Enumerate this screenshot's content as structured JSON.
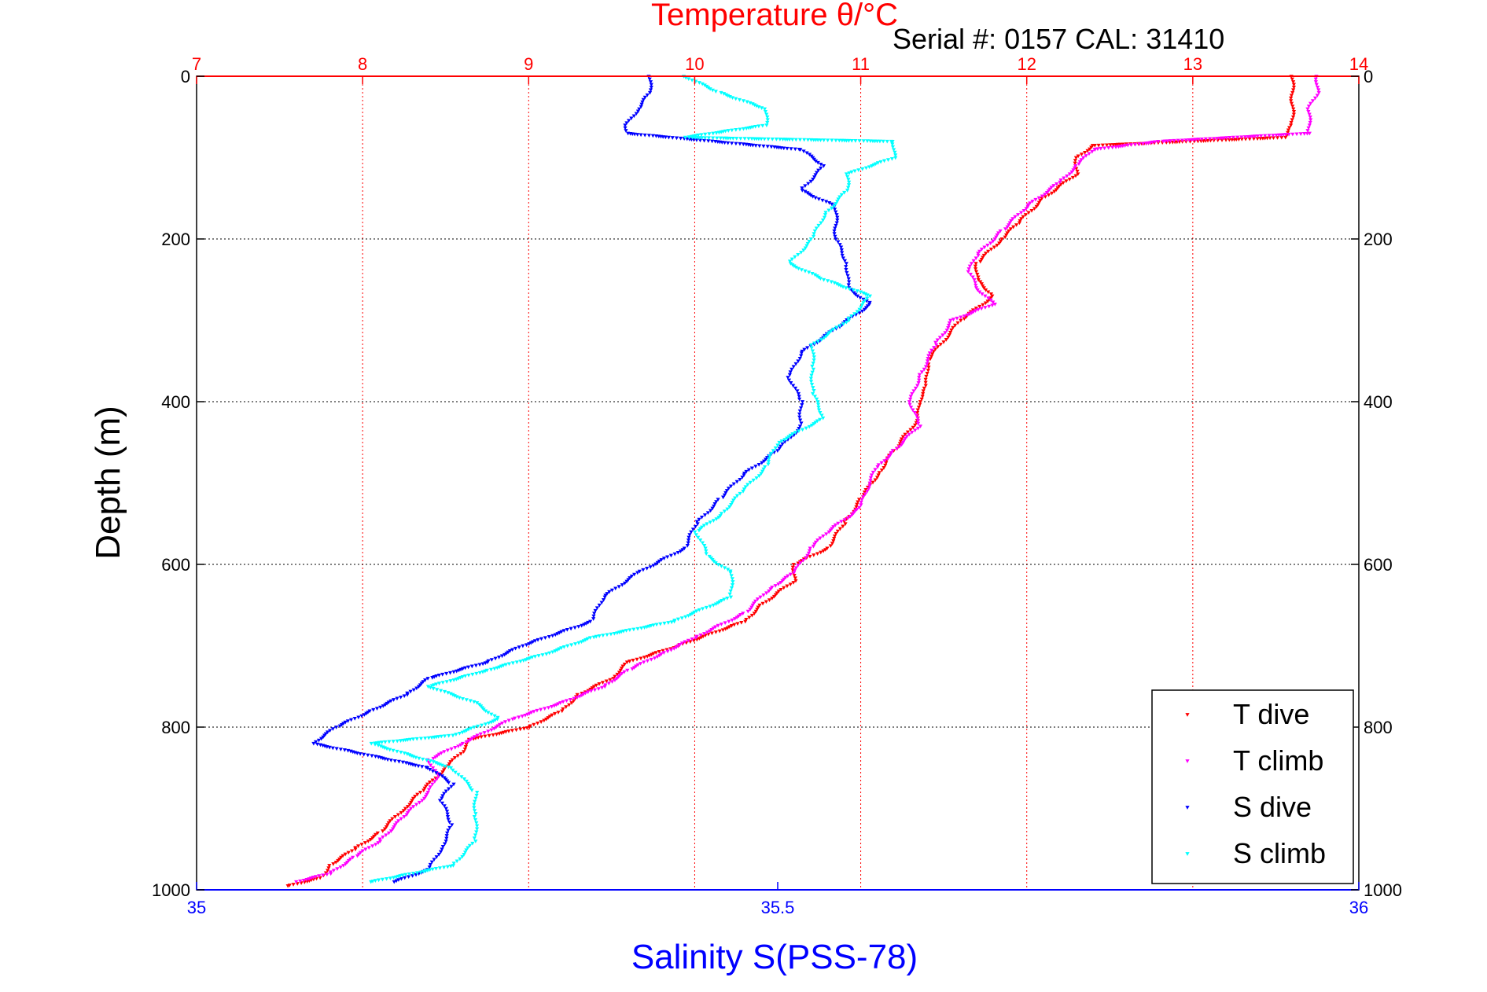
{
  "chart_data": {
    "type": "scatter",
    "title": "Temperature θ/°C",
    "subtitle": "Serial #: 0157  CAL: 31410",
    "xlabel": "Salinity S(PSS-78)",
    "ylabel": "Depth (m)",
    "x_top": {
      "label": "Temperature θ/°C",
      "range": [
        7,
        14
      ],
      "ticks": [
        "7",
        "8",
        "9",
        "10",
        "11",
        "12",
        "13",
        "14"
      ],
      "color": "#ff0000"
    },
    "x_bottom": {
      "label": "Salinity S(PSS-78)",
      "range": [
        35,
        36
      ],
      "ticks": [
        "35",
        "35.5",
        "36"
      ],
      "color": "#0000ff"
    },
    "y": {
      "label": "Depth (m)",
      "range": [
        0,
        1000
      ],
      "reversed": true,
      "ticks": [
        "0",
        "200",
        "400",
        "600",
        "800",
        "1000"
      ]
    },
    "grid": true,
    "legend_position": "bottom-right",
    "series": [
      {
        "name": "T dive",
        "axis": "temperature",
        "color": "#ff0000",
        "points": [
          [
            13.6,
            0
          ],
          [
            13.6,
            20
          ],
          [
            13.6,
            40
          ],
          [
            13.6,
            60
          ],
          [
            13.55,
            75
          ],
          [
            12.4,
            85
          ],
          [
            12.3,
            100
          ],
          [
            12.3,
            120
          ],
          [
            12.1,
            150
          ],
          [
            11.95,
            180
          ],
          [
            11.85,
            200
          ],
          [
            11.7,
            230
          ],
          [
            11.7,
            250
          ],
          [
            11.8,
            270
          ],
          [
            11.6,
            300
          ],
          [
            11.4,
            350
          ],
          [
            11.4,
            380
          ],
          [
            11.35,
            400
          ],
          [
            11.35,
            420
          ],
          [
            11.2,
            460
          ],
          [
            11.1,
            490
          ],
          [
            11.0,
            520
          ],
          [
            10.9,
            550
          ],
          [
            10.8,
            580
          ],
          [
            10.6,
            600
          ],
          [
            10.6,
            620
          ],
          [
            10.4,
            650
          ],
          [
            10.3,
            670
          ],
          [
            9.9,
            700
          ],
          [
            9.6,
            720
          ],
          [
            9.5,
            740
          ],
          [
            9.3,
            760
          ],
          [
            9.2,
            780
          ],
          [
            9.0,
            800
          ],
          [
            8.65,
            815
          ],
          [
            8.6,
            830
          ],
          [
            8.5,
            850
          ],
          [
            8.35,
            880
          ],
          [
            8.25,
            900
          ],
          [
            8.1,
            930
          ],
          [
            7.95,
            950
          ],
          [
            7.8,
            970
          ],
          [
            7.75,
            985
          ],
          [
            7.55,
            995
          ]
        ]
      },
      {
        "name": "T climb",
        "axis": "temperature",
        "color": "#ff00ff",
        "points": [
          [
            13.75,
            0
          ],
          [
            13.75,
            20
          ],
          [
            13.7,
            40
          ],
          [
            13.7,
            60
          ],
          [
            13.7,
            70
          ],
          [
            12.8,
            80
          ],
          [
            12.4,
            90
          ],
          [
            12.3,
            110
          ],
          [
            12.2,
            130
          ],
          [
            12.0,
            160
          ],
          [
            11.85,
            190
          ],
          [
            11.7,
            220
          ],
          [
            11.65,
            240
          ],
          [
            11.7,
            260
          ],
          [
            11.8,
            280
          ],
          [
            11.55,
            300
          ],
          [
            11.45,
            330
          ],
          [
            11.35,
            370
          ],
          [
            11.3,
            400
          ],
          [
            11.35,
            430
          ],
          [
            11.2,
            460
          ],
          [
            11.1,
            480
          ],
          [
            11.05,
            500
          ],
          [
            11.0,
            530
          ],
          [
            10.8,
            560
          ],
          [
            10.7,
            580
          ],
          [
            10.6,
            610
          ],
          [
            10.45,
            630
          ],
          [
            10.3,
            660
          ],
          [
            10.0,
            690
          ],
          [
            9.8,
            710
          ],
          [
            9.6,
            730
          ],
          [
            9.45,
            750
          ],
          [
            9.2,
            770
          ],
          [
            8.9,
            790
          ],
          [
            8.6,
            820
          ],
          [
            8.4,
            840
          ],
          [
            8.45,
            860
          ],
          [
            8.4,
            880
          ],
          [
            8.25,
            910
          ],
          [
            8.1,
            940
          ],
          [
            7.95,
            960
          ],
          [
            7.8,
            980
          ],
          [
            7.6,
            990
          ]
        ]
      },
      {
        "name": "S dive",
        "axis": "salinity",
        "color": "#0000ff",
        "points": [
          [
            35.39,
            0
          ],
          [
            35.39,
            20
          ],
          [
            35.38,
            40
          ],
          [
            35.37,
            60
          ],
          [
            35.37,
            70
          ],
          [
            35.52,
            90
          ],
          [
            35.54,
            110
          ],
          [
            35.52,
            140
          ],
          [
            35.55,
            160
          ],
          [
            35.55,
            180
          ],
          [
            35.55,
            200
          ],
          [
            35.56,
            230
          ],
          [
            35.56,
            260
          ],
          [
            35.58,
            280
          ],
          [
            35.55,
            310
          ],
          [
            35.52,
            340
          ],
          [
            35.51,
            370
          ],
          [
            35.52,
            400
          ],
          [
            35.52,
            430
          ],
          [
            35.5,
            460
          ],
          [
            35.47,
            490
          ],
          [
            35.45,
            520
          ],
          [
            35.43,
            550
          ],
          [
            35.42,
            580
          ],
          [
            35.38,
            610
          ],
          [
            35.35,
            640
          ],
          [
            35.34,
            670
          ],
          [
            35.28,
            700
          ],
          [
            35.25,
            720
          ],
          [
            35.2,
            740
          ],
          [
            35.18,
            760
          ],
          [
            35.15,
            780
          ],
          [
            35.12,
            800
          ],
          [
            35.1,
            820
          ],
          [
            35.2,
            850
          ],
          [
            35.22,
            870
          ],
          [
            35.21,
            890
          ],
          [
            35.22,
            920
          ],
          [
            35.21,
            950
          ],
          [
            35.2,
            975
          ],
          [
            35.17,
            990
          ]
        ]
      },
      {
        "name": "S climb",
        "axis": "salinity",
        "color": "#00ffff",
        "points": [
          [
            35.42,
            0
          ],
          [
            35.45,
            20
          ],
          [
            35.49,
            40
          ],
          [
            35.49,
            60
          ],
          [
            35.42,
            75
          ],
          [
            35.6,
            80
          ],
          [
            35.6,
            100
          ],
          [
            35.56,
            120
          ],
          [
            35.56,
            140
          ],
          [
            35.54,
            170
          ],
          [
            35.53,
            200
          ],
          [
            35.51,
            230
          ],
          [
            35.54,
            250
          ],
          [
            35.58,
            270
          ],
          [
            35.56,
            300
          ],
          [
            35.53,
            330
          ],
          [
            35.53,
            360
          ],
          [
            35.53,
            390
          ],
          [
            35.54,
            420
          ],
          [
            35.5,
            450
          ],
          [
            35.49,
            480
          ],
          [
            35.47,
            510
          ],
          [
            35.45,
            540
          ],
          [
            35.43,
            560
          ],
          [
            35.44,
            590
          ],
          [
            35.46,
            610
          ],
          [
            35.46,
            640
          ],
          [
            35.41,
            670
          ],
          [
            35.34,
            690
          ],
          [
            35.3,
            710
          ],
          [
            35.25,
            730
          ],
          [
            35.2,
            750
          ],
          [
            35.24,
            770
          ],
          [
            35.26,
            790
          ],
          [
            35.22,
            810
          ],
          [
            35.15,
            820
          ],
          [
            35.22,
            850
          ],
          [
            35.24,
            880
          ],
          [
            35.24,
            910
          ],
          [
            35.24,
            940
          ],
          [
            35.22,
            970
          ],
          [
            35.15,
            990
          ]
        ]
      }
    ]
  }
}
